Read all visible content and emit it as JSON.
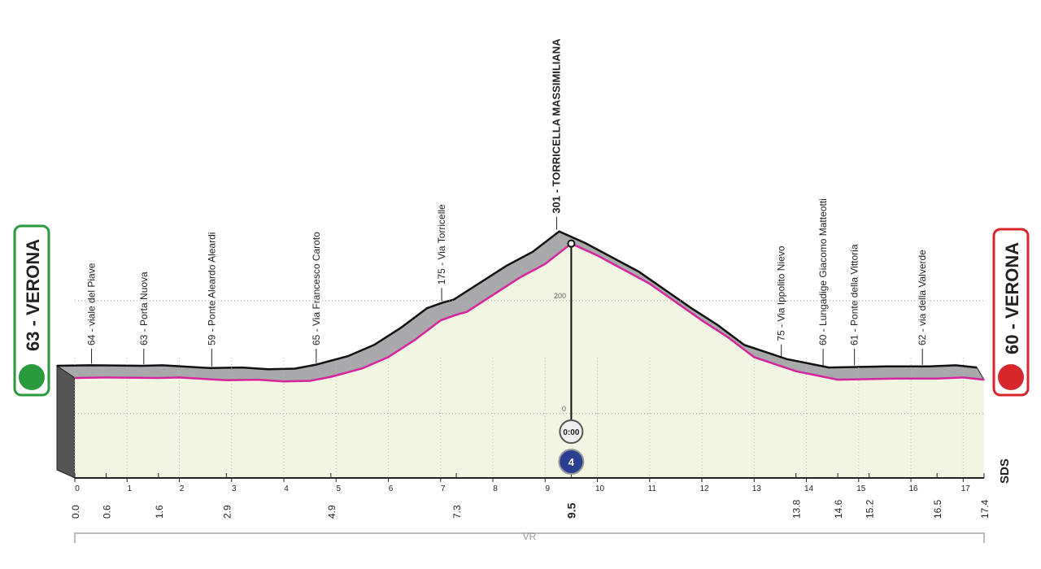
{
  "chart_data": {
    "type": "profile",
    "start": "63 - VERONA",
    "finish": "60 - VERONA",
    "x": [
      0,
      0.6,
      1.6,
      2.0,
      2.9,
      3.5,
      4.0,
      4.5,
      4.9,
      5.5,
      6.0,
      6.5,
      7.0,
      7.3,
      7.5,
      8.0,
      8.5,
      9.0,
      9.5,
      10.0,
      11.0,
      12.0,
      12.5,
      13.0,
      13.8,
      14.6,
      15.2,
      15.7,
      16.5,
      17.0,
      17.4
    ],
    "values": [
      63,
      64,
      63,
      64,
      59,
      60,
      57,
      58,
      65,
      80,
      100,
      130,
      165,
      175,
      180,
      210,
      240,
      265,
      301,
      280,
      230,
      165,
      135,
      100,
      75,
      60,
      61,
      62,
      62,
      64,
      60
    ],
    "color": "#d6249f",
    "fill": "#f2f5e1",
    "xlim": [
      0,
      17.4
    ],
    "xticks": [
      0,
      1,
      2,
      3,
      4,
      5,
      6,
      7,
      8,
      9,
      10,
      11,
      12,
      13,
      14,
      15,
      16,
      17
    ],
    "ylim": [
      -114,
      420
    ],
    "yticks": [
      0,
      200
    ],
    "waypoints": [
      {
        "km": {
          "value": 0,
          "label": "0.0"
        }
      },
      {
        "km": {
          "value": 0.6,
          "label": "0.6"
        },
        "name": "64 - viale del Piave"
      },
      {
        "km": {
          "value": 1.6,
          "label": "1.6"
        },
        "name": "63 - Porta Nuova"
      },
      {
        "km": {
          "value": 2.9,
          "label": "2.9"
        },
        "name": "59 - Ponte Aleardo Aleardi"
      },
      {
        "km": {
          "value": 4.9,
          "label": "4.9"
        },
        "name": "65 - Via Francesco Caroto"
      },
      {
        "km": {
          "value": 7.3,
          "label": "7.3"
        },
        "name": "175 - Via Torricelle"
      },
      {
        "km": {
          "value": 9.5,
          "label": "9.5"
        },
        "name": "301 - TORRICELLA MASSIMILIANA"
      },
      {
        "km": {
          "value": 13.8,
          "label": "13.8"
        },
        "name": "75 - Via Ippolito Nievo"
      },
      {
        "km": {
          "value": 14.6,
          "label": "14.6"
        },
        "name": "60 - Lungadige Giacomo Matteotti"
      },
      {
        "km": {
          "value": 15.2,
          "label": "15.2"
        },
        "name": "61 - Ponte della Vittoria"
      },
      {
        "km": {
          "value": 16.5,
          "label": "16.5"
        },
        "name": "62 - via della Valverde"
      },
      {
        "km": {
          "value": 17.4,
          "label": "17.4"
        }
      }
    ],
    "timecheck": "0:00",
    "category": "4",
    "province": "VR",
    "brand": "SDS"
  }
}
